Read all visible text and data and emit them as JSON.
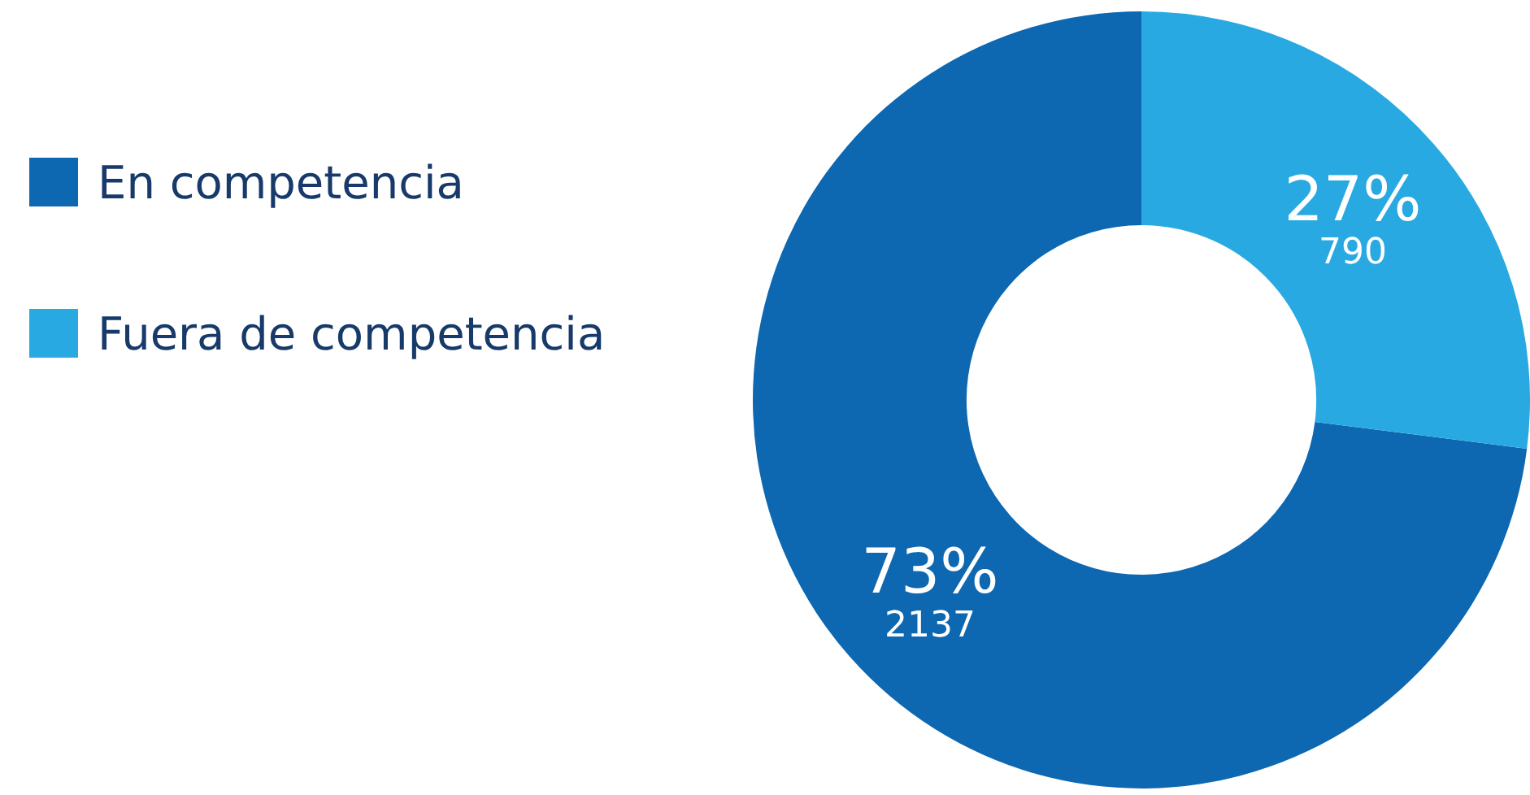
{
  "chart_data": {
    "type": "donut",
    "categories": [
      "En competencia",
      "Fuera de competencia"
    ],
    "values": [
      73,
      27
    ],
    "colors": [
      "#0d68b1",
      "#29a9e1"
    ],
    "value_labels": [
      "73%",
      "27%"
    ],
    "annotations": [
      "2137",
      "790"
    ],
    "legend": "left"
  }
}
